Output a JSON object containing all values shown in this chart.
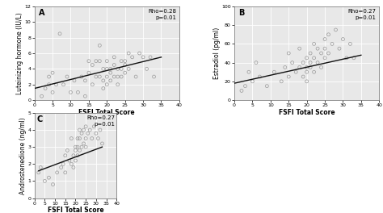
{
  "panels": [
    {
      "label": "A",
      "xlabel": "FSFI Total Score",
      "ylabel": "Luteinizing hormone (IU/L)",
      "rho": "Rho=0.28",
      "pval": "p=0.01",
      "xlim": [
        0,
        40
      ],
      "ylim": [
        0,
        12
      ],
      "xticks": [
        0,
        5,
        10,
        15,
        20,
        25,
        30,
        35,
        40
      ],
      "yticks": [
        0,
        2,
        4,
        6,
        8,
        10,
        12
      ],
      "x": [
        2,
        3,
        4,
        4,
        5,
        5,
        6,
        7,
        8,
        9,
        10,
        11,
        12,
        13,
        14,
        14,
        15,
        15,
        16,
        16,
        17,
        17,
        18,
        18,
        18,
        19,
        19,
        19,
        20,
        20,
        20,
        20,
        21,
        21,
        21,
        22,
        22,
        22,
        23,
        23,
        23,
        24,
        24,
        24,
        25,
        25,
        25,
        26,
        26,
        27,
        28,
        29,
        30,
        31,
        32,
        33
      ],
      "y": [
        0.5,
        1.5,
        3,
        2,
        1,
        3.5,
        2,
        8.5,
        2,
        3,
        1,
        2.5,
        1,
        3,
        0.5,
        2.5,
        5,
        3.5,
        4.5,
        2,
        5,
        3,
        7,
        5,
        3,
        4,
        2.5,
        1.5,
        5,
        4,
        3,
        2,
        4,
        3.5,
        2.5,
        4.5,
        3,
        5.5,
        4,
        3,
        2,
        5,
        4,
        3,
        3.5,
        5,
        4.5,
        4,
        6,
        5.5,
        3,
        6,
        5.5,
        4,
        5.5,
        3
      ],
      "line_x": [
        0,
        35
      ],
      "line_y": [
        1.5,
        5.5
      ]
    },
    {
      "label": "B",
      "xlabel": "FSFI Total Score",
      "ylabel": "Estradiol (pg/ml)",
      "rho": "Rho=0.27",
      "pval": "p=0.01",
      "xlim": [
        0,
        40
      ],
      "ylim": [
        0,
        100
      ],
      "xticks": [
        0,
        5,
        10,
        15,
        20,
        25,
        30,
        35,
        40
      ],
      "yticks": [
        0,
        20,
        40,
        60,
        80,
        100
      ],
      "x": [
        2,
        3,
        4,
        5,
        6,
        7,
        9,
        11,
        13,
        14,
        15,
        15,
        16,
        17,
        18,
        18,
        19,
        19,
        20,
        20,
        20,
        20,
        21,
        21,
        21,
        22,
        22,
        22,
        23,
        23,
        24,
        24,
        25,
        25,
        25,
        26,
        26,
        27,
        28,
        29,
        30,
        31,
        32,
        33
      ],
      "y": [
        10,
        15,
        30,
        20,
        40,
        25,
        15,
        30,
        20,
        35,
        50,
        25,
        40,
        30,
        55,
        35,
        40,
        25,
        45,
        35,
        30,
        20,
        50,
        40,
        35,
        60,
        45,
        30,
        55,
        40,
        50,
        35,
        65,
        45,
        55,
        70,
        50,
        60,
        75,
        55,
        65,
        45,
        60,
        45
      ],
      "line_x": [
        0,
        35
      ],
      "line_y": [
        18,
        48
      ]
    },
    {
      "label": "C",
      "xlabel": "FSFI Total Score",
      "ylabel": "Androstenedione (ng/ml)",
      "rho": "Rho=0.27",
      "pval": "p=0.01",
      "xlim": [
        0,
        40
      ],
      "ylim": [
        0,
        5
      ],
      "xticks": [
        0,
        5,
        10,
        15,
        20,
        25,
        30,
        35,
        40
      ],
      "yticks": [
        0,
        1,
        2,
        3,
        4,
        5
      ],
      "x": [
        2,
        3,
        5,
        7,
        9,
        11,
        13,
        14,
        15,
        15,
        16,
        17,
        18,
        18,
        19,
        19,
        20,
        20,
        20,
        21,
        21,
        21,
        22,
        22,
        22,
        23,
        23,
        24,
        24,
        25,
        25,
        25,
        26,
        27,
        28,
        29,
        30,
        31,
        32,
        33
      ],
      "y": [
        1.5,
        1.8,
        1.0,
        1.2,
        0.8,
        1.5,
        1.8,
        2.0,
        2.5,
        1.5,
        2.8,
        2.2,
        3.5,
        2.0,
        2.5,
        1.8,
        3.0,
        2.8,
        2.2,
        3.5,
        3.0,
        2.5,
        4.0,
        3.5,
        2.8,
        3.8,
        3.0,
        4.0,
        3.2,
        4.2,
        3.5,
        3.0,
        3.8,
        4.0,
        3.5,
        4.2,
        3.8,
        3.5,
        4.0,
        3.2
      ],
      "line_x": [
        2,
        33
      ],
      "line_y": [
        1.6,
        3.0
      ]
    }
  ],
  "bg_color": "#e8e8e8",
  "scatter_edge": "#999999",
  "line_color": "#111111",
  "label_fontsize": 5.5,
  "tick_fontsize": 4.5,
  "anno_fontsize": 5.0,
  "panel_label_fontsize": 7
}
